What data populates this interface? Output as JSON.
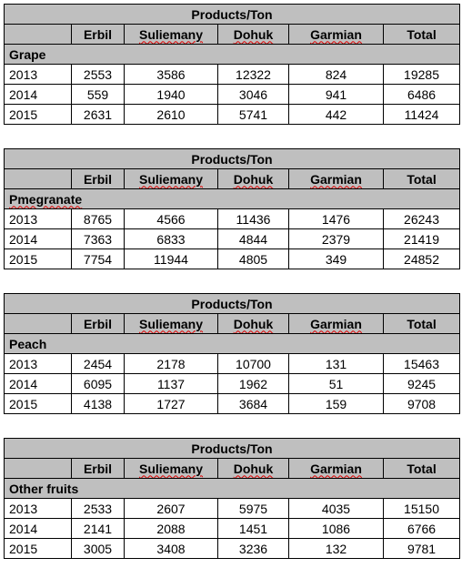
{
  "tables": [
    {
      "title": "Products/Ton",
      "columns": [
        "",
        "Erbil",
        "Suliemany",
        "Dohuk",
        "Garmian",
        "Total"
      ],
      "category": "Grape",
      "rows": [
        [
          "2013",
          "2553",
          "3586",
          "12322",
          "824",
          "19285"
        ],
        [
          "2014",
          "559",
          "1940",
          "3046",
          "941",
          "6486"
        ],
        [
          "2015",
          "2631",
          "2610",
          "5741",
          "442",
          "11424"
        ]
      ]
    },
    {
      "title": "Products/Ton",
      "columns": [
        "",
        "Erbil",
        "Suliemany",
        "Dohuk",
        "Garmian",
        "Total"
      ],
      "category": "Pmegranate",
      "rows": [
        [
          "2013",
          "8765",
          "4566",
          "11436",
          "1476",
          "26243"
        ],
        [
          "2014",
          "7363",
          "6833",
          "4844",
          "2379",
          "21419"
        ],
        [
          "2015",
          "7754",
          "11944",
          "4805",
          "349",
          "24852"
        ]
      ]
    },
    {
      "title": "Products/Ton",
      "columns": [
        "",
        "Erbil",
        "Suliemany",
        "Dohuk",
        "Garmian",
        "Total"
      ],
      "category": "Peach",
      "rows": [
        [
          "2013",
          "2454",
          "2178",
          "10700",
          "131",
          "15463"
        ],
        [
          "2014",
          "6095",
          "1137",
          "1962",
          "51",
          "9245"
        ],
        [
          "2015",
          "4138",
          "1727",
          "3684",
          "159",
          "9708"
        ]
      ]
    },
    {
      "title": "Products/Ton",
      "columns": [
        "",
        "Erbil",
        "Suliemany",
        "Dohuk",
        "Garmian",
        "Total"
      ],
      "category": "Other fruits",
      "rows": [
        [
          "2013",
          "2533",
          "2607",
          "5975",
          "4035",
          "15150"
        ],
        [
          "2014",
          "2141",
          "2088",
          "1451",
          "1086",
          "6766"
        ],
        [
          "2015",
          "3005",
          "3408",
          "3236",
          "132",
          "9781"
        ]
      ]
    }
  ],
  "style": {
    "header_fill": "#bfbfbf",
    "border_color": "#000000",
    "spellcheck_underline": "#e00000"
  }
}
